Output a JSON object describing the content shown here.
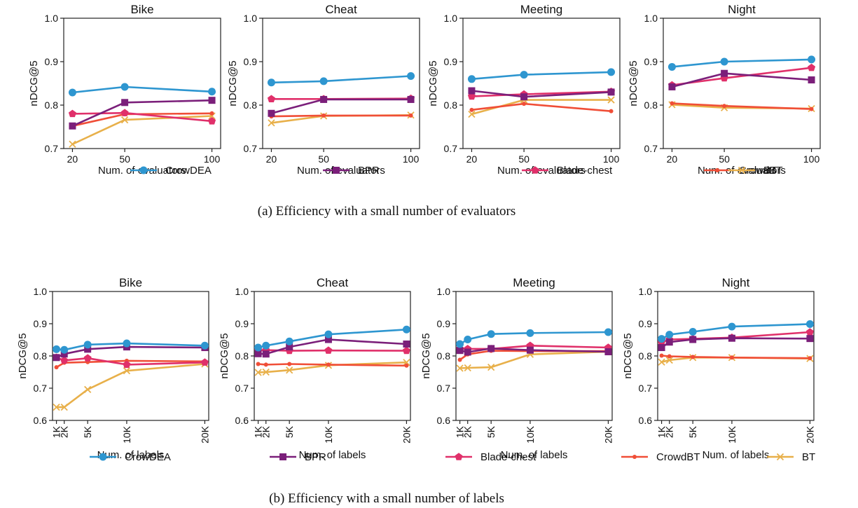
{
  "colors": {
    "CrowDEA": "#2e96d0",
    "BPR": "#7b1f7a",
    "Blade-chest": "#e0306a",
    "CrowdBT": "#f04e37",
    "BT": "#e8b04a"
  },
  "markers": {
    "CrowDEA": "circle",
    "BPR": "square",
    "Blade-chest": "pentagon",
    "CrowdBT": "dot",
    "BT": "x"
  },
  "legend": [
    "CrowDEA",
    "BPR",
    "Blade-chest",
    "CrowdBT",
    "BT"
  ],
  "captions": [
    "(a) Efficiency with a small number of evaluators",
    "(b) Efficiency with a small number of labels"
  ],
  "chart_data": [
    {
      "type": "line",
      "row": 0,
      "title": "Bike",
      "xlabel": "Num. of evaluators",
      "ylabel": "nDCG@5",
      "x": [
        20,
        50,
        100
      ],
      "xticks": [
        "20",
        "50",
        "100"
      ],
      "xlim": [
        15,
        105
      ],
      "ylim": [
        0.7,
        1.0
      ],
      "yticks": [
        "0.7",
        "0.8",
        "0.9",
        "1.0"
      ],
      "series": [
        {
          "name": "CrowDEA",
          "values": [
            0.829,
            0.842,
            0.831
          ]
        },
        {
          "name": "BPR",
          "values": [
            0.752,
            0.806,
            0.811
          ]
        },
        {
          "name": "Blade-chest",
          "values": [
            0.78,
            0.782,
            0.763
          ]
        },
        {
          "name": "CrowdBT",
          "values": [
            0.752,
            0.779,
            0.781
          ]
        },
        {
          "name": "BT",
          "values": [
            0.71,
            0.766,
            0.775
          ]
        }
      ]
    },
    {
      "type": "line",
      "row": 0,
      "title": "Cheat",
      "xlabel": "Num. of evaluators",
      "ylabel": "nDCG@5",
      "x": [
        20,
        50,
        100
      ],
      "xticks": [
        "20",
        "50",
        "100"
      ],
      "xlim": [
        15,
        105
      ],
      "ylim": [
        0.7,
        1.0
      ],
      "yticks": [
        "0.7",
        "0.8",
        "0.9",
        "1.0"
      ],
      "series": [
        {
          "name": "CrowDEA",
          "values": [
            0.852,
            0.855,
            0.867
          ]
        },
        {
          "name": "BPR",
          "values": [
            0.781,
            0.813,
            0.813
          ]
        },
        {
          "name": "Blade-chest",
          "values": [
            0.814,
            0.814,
            0.815
          ]
        },
        {
          "name": "CrowdBT",
          "values": [
            0.774,
            0.776,
            0.776
          ]
        },
        {
          "name": "BT",
          "values": [
            0.759,
            0.775,
            0.777
          ]
        }
      ]
    },
    {
      "type": "line",
      "row": 0,
      "title": "Meeting",
      "xlabel": "Num. of evaluators",
      "ylabel": "nDCG@5",
      "x": [
        20,
        50,
        100
      ],
      "xticks": [
        "20",
        "50",
        "100"
      ],
      "xlim": [
        15,
        105
      ],
      "ylim": [
        0.7,
        1.0
      ],
      "yticks": [
        "0.7",
        "0.8",
        "0.9",
        "1.0"
      ],
      "series": [
        {
          "name": "CrowDEA",
          "values": [
            0.86,
            0.87,
            0.876
          ]
        },
        {
          "name": "BPR",
          "values": [
            0.833,
            0.819,
            0.83
          ]
        },
        {
          "name": "Blade-chest",
          "values": [
            0.82,
            0.825,
            0.831
          ]
        },
        {
          "name": "CrowdBT",
          "values": [
            0.789,
            0.803,
            0.786
          ]
        },
        {
          "name": "BT",
          "values": [
            0.779,
            0.812,
            0.812
          ]
        }
      ]
    },
    {
      "type": "line",
      "row": 0,
      "title": "Night",
      "xlabel": "Num. of evaluators",
      "ylabel": "nDCG@5",
      "x": [
        20,
        50,
        100
      ],
      "xticks": [
        "20",
        "50",
        "100"
      ],
      "xlim": [
        15,
        105
      ],
      "ylim": [
        0.7,
        1.0
      ],
      "yticks": [
        "0.7",
        "0.8",
        "0.9",
        "1.0"
      ],
      "series": [
        {
          "name": "CrowDEA",
          "values": [
            0.888,
            0.9,
            0.905
          ]
        },
        {
          "name": "BPR",
          "values": [
            0.842,
            0.873,
            0.858
          ]
        },
        {
          "name": "Blade-chest",
          "values": [
            0.846,
            0.862,
            0.886
          ]
        },
        {
          "name": "CrowdBT",
          "values": [
            0.804,
            0.798,
            0.791
          ]
        },
        {
          "name": "BT",
          "values": [
            0.801,
            0.794,
            0.792
          ]
        }
      ]
    },
    {
      "type": "line",
      "row": 1,
      "title": "Bike",
      "xlabel": "Num. of labels",
      "ylabel": "nDCG@5",
      "x": [
        1000,
        2000,
        5000,
        10000,
        20000
      ],
      "xticks": [
        "1K",
        "2K",
        "5K",
        "10K",
        "20K"
      ],
      "xlim": [
        500,
        20500
      ],
      "ylim": [
        0.6,
        1.0
      ],
      "yticks": [
        "0.6",
        "0.7",
        "0.8",
        "0.9",
        "1.0"
      ],
      "series": [
        {
          "name": "CrowDEA",
          "values": [
            0.821,
            0.819,
            0.835,
            0.839,
            0.832
          ]
        },
        {
          "name": "BPR",
          "values": [
            0.795,
            0.806,
            0.821,
            0.828,
            0.826
          ]
        },
        {
          "name": "Blade-chest",
          "values": [
            0.795,
            0.786,
            0.793,
            0.773,
            0.78
          ]
        },
        {
          "name": "CrowdBT",
          "values": [
            0.765,
            0.779,
            0.781,
            0.785,
            0.783
          ]
        },
        {
          "name": "BT",
          "values": [
            0.641,
            0.641,
            0.696,
            0.754,
            0.775
          ]
        }
      ]
    },
    {
      "type": "line",
      "row": 1,
      "title": "Cheat",
      "xlabel": "Num. of labels",
      "ylabel": "nDCG@5",
      "x": [
        1000,
        2000,
        5000,
        10000,
        20000
      ],
      "xticks": [
        "1K",
        "2K",
        "5K",
        "10K",
        "20K"
      ],
      "xlim": [
        500,
        20500
      ],
      "ylim": [
        0.6,
        1.0
      ],
      "yticks": [
        "0.6",
        "0.7",
        "0.8",
        "0.9",
        "1.0"
      ],
      "series": [
        {
          "name": "CrowDEA",
          "values": [
            0.826,
            0.832,
            0.845,
            0.867,
            0.882
          ]
        },
        {
          "name": "BPR",
          "values": [
            0.807,
            0.806,
            0.828,
            0.851,
            0.837
          ]
        },
        {
          "name": "Blade-chest",
          "values": [
            0.817,
            0.818,
            0.816,
            0.817,
            0.816
          ]
        },
        {
          "name": "CrowdBT",
          "values": [
            0.775,
            0.773,
            0.775,
            0.773,
            0.77
          ]
        },
        {
          "name": "BT",
          "values": [
            0.749,
            0.75,
            0.756,
            0.771,
            0.78
          ]
        }
      ]
    },
    {
      "type": "line",
      "row": 1,
      "title": "Meeting",
      "xlabel": "Num. of labels",
      "ylabel": "nDCG@5",
      "x": [
        1000,
        2000,
        5000,
        10000,
        20000
      ],
      "xticks": [
        "1K",
        "2K",
        "5K",
        "10K",
        "20K"
      ],
      "xlim": [
        500,
        20500
      ],
      "ylim": [
        0.6,
        1.0
      ],
      "yticks": [
        "0.6",
        "0.7",
        "0.8",
        "0.9",
        "1.0"
      ],
      "series": [
        {
          "name": "CrowDEA",
          "values": [
            0.837,
            0.851,
            0.868,
            0.871,
            0.874
          ]
        },
        {
          "name": "BPR",
          "values": [
            0.817,
            0.812,
            0.823,
            0.818,
            0.813
          ]
        },
        {
          "name": "Blade-chest",
          "values": [
            0.822,
            0.822,
            0.822,
            0.832,
            0.826
          ]
        },
        {
          "name": "CrowdBT",
          "values": [
            0.788,
            0.805,
            0.816,
            0.815,
            0.815
          ]
        },
        {
          "name": "BT",
          "values": [
            0.762,
            0.763,
            0.765,
            0.805,
            0.813
          ]
        }
      ]
    },
    {
      "type": "line",
      "row": 1,
      "title": "Night",
      "xlabel": "Num. of labels",
      "ylabel": "nDCG@5",
      "x": [
        1000,
        2000,
        5000,
        10000,
        20000
      ],
      "xticks": [
        "1K",
        "2K",
        "5K",
        "10K",
        "20K"
      ],
      "xlim": [
        500,
        20500
      ],
      "ylim": [
        0.6,
        1.0
      ],
      "yticks": [
        "0.6",
        "0.7",
        "0.8",
        "0.9",
        "1.0"
      ],
      "series": [
        {
          "name": "CrowDEA",
          "values": [
            0.853,
            0.866,
            0.875,
            0.891,
            0.899
          ]
        },
        {
          "name": "BPR",
          "values": [
            0.826,
            0.843,
            0.851,
            0.855,
            0.854
          ]
        },
        {
          "name": "Blade-chest",
          "values": [
            0.842,
            0.851,
            0.853,
            0.857,
            0.874
          ]
        },
        {
          "name": "CrowdBT",
          "values": [
            0.801,
            0.799,
            0.797,
            0.795,
            0.793
          ]
        },
        {
          "name": "BT",
          "values": [
            0.781,
            0.787,
            0.795,
            0.795,
            0.792
          ]
        }
      ]
    }
  ]
}
